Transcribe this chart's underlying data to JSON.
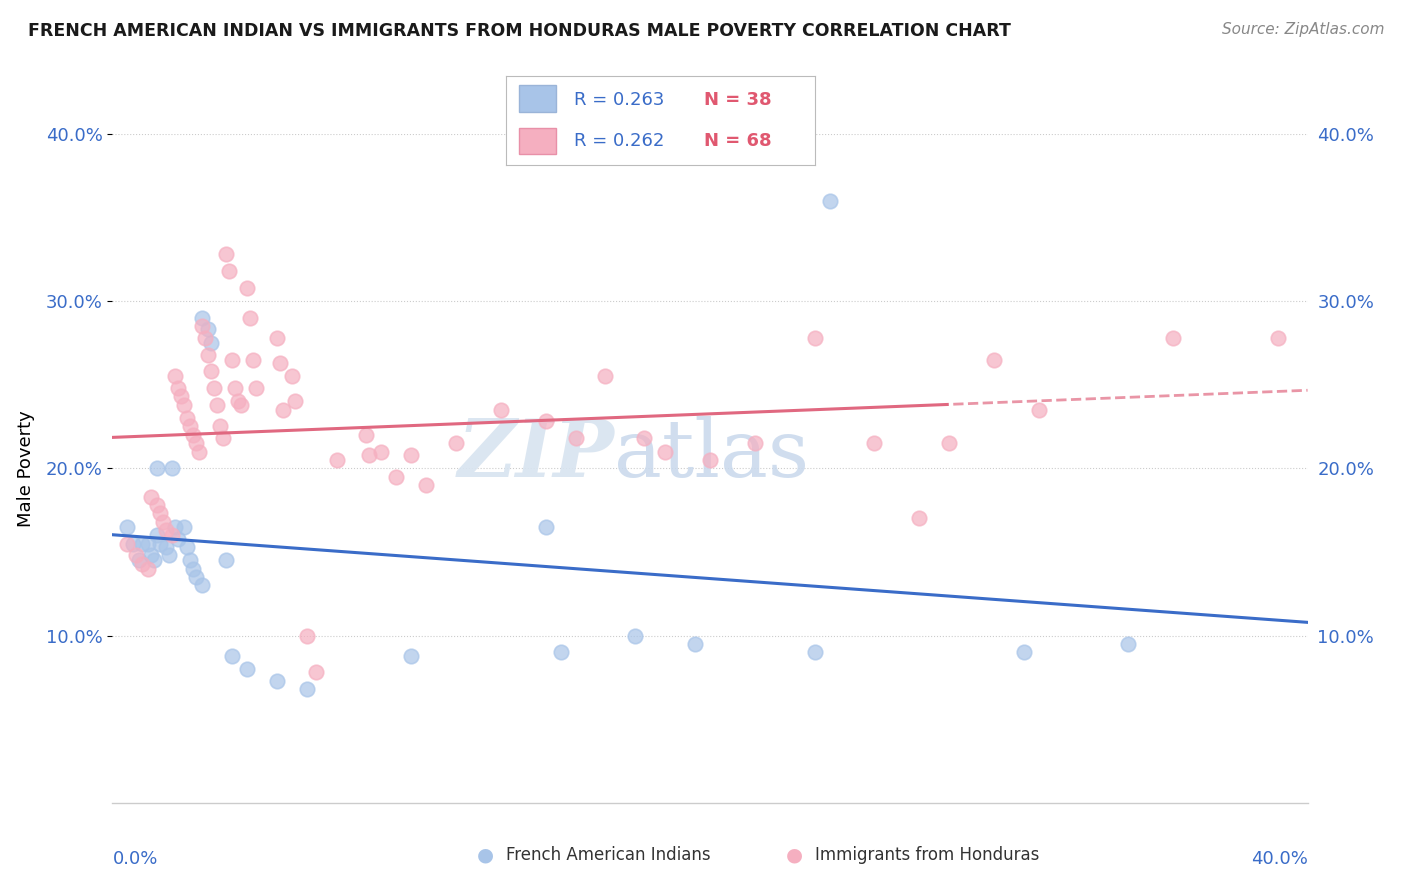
{
  "title": "FRENCH AMERICAN INDIAN VS IMMIGRANTS FROM HONDURAS MALE POVERTY CORRELATION CHART",
  "source": "Source: ZipAtlas.com",
  "ylabel": "Male Poverty",
  "xmin": 0.0,
  "xmax": 0.4,
  "ymin": 0.0,
  "ymax": 0.4,
  "yticks": [
    0.1,
    0.2,
    0.3,
    0.4
  ],
  "ytick_labels": [
    "10.0%",
    "20.0%",
    "30.0%",
    "40.0%"
  ],
  "legend_blue_r": "R = 0.263",
  "legend_blue_n": "N = 38",
  "legend_pink_r": "R = 0.262",
  "legend_pink_n": "N = 68",
  "blue_label": "French American Indians",
  "pink_label": "Immigrants from Honduras",
  "blue_color": "#a8c4e8",
  "pink_color": "#f5afc0",
  "blue_line_color": "#3a6cc8",
  "pink_line_color": "#e06880",
  "watermark_zip": "ZIP",
  "watermark_atlas": "atlas",
  "blue_points": [
    [
      0.005,
      0.165
    ],
    [
      0.007,
      0.155
    ],
    [
      0.009,
      0.145
    ],
    [
      0.01,
      0.155
    ],
    [
      0.012,
      0.155
    ],
    [
      0.013,
      0.148
    ],
    [
      0.014,
      0.145
    ],
    [
      0.015,
      0.2
    ],
    [
      0.015,
      0.16
    ],
    [
      0.016,
      0.155
    ],
    [
      0.018,
      0.153
    ],
    [
      0.019,
      0.148
    ],
    [
      0.02,
      0.2
    ],
    [
      0.021,
      0.165
    ],
    [
      0.022,
      0.158
    ],
    [
      0.024,
      0.165
    ],
    [
      0.025,
      0.153
    ],
    [
      0.026,
      0.145
    ],
    [
      0.027,
      0.14
    ],
    [
      0.028,
      0.135
    ],
    [
      0.03,
      0.13
    ],
    [
      0.03,
      0.29
    ],
    [
      0.032,
      0.283
    ],
    [
      0.033,
      0.275
    ],
    [
      0.038,
      0.145
    ],
    [
      0.04,
      0.088
    ],
    [
      0.045,
      0.08
    ],
    [
      0.055,
      0.073
    ],
    [
      0.065,
      0.068
    ],
    [
      0.1,
      0.088
    ],
    [
      0.145,
      0.165
    ],
    [
      0.15,
      0.09
    ],
    [
      0.175,
      0.1
    ],
    [
      0.195,
      0.095
    ],
    [
      0.235,
      0.09
    ],
    [
      0.24,
      0.36
    ],
    [
      0.305,
      0.09
    ],
    [
      0.34,
      0.095
    ]
  ],
  "pink_points": [
    [
      0.005,
      0.155
    ],
    [
      0.008,
      0.148
    ],
    [
      0.01,
      0.143
    ],
    [
      0.012,
      0.14
    ],
    [
      0.013,
      0.183
    ],
    [
      0.015,
      0.178
    ],
    [
      0.016,
      0.173
    ],
    [
      0.017,
      0.168
    ],
    [
      0.018,
      0.163
    ],
    [
      0.02,
      0.16
    ],
    [
      0.021,
      0.255
    ],
    [
      0.022,
      0.248
    ],
    [
      0.023,
      0.243
    ],
    [
      0.024,
      0.238
    ],
    [
      0.025,
      0.23
    ],
    [
      0.026,
      0.225
    ],
    [
      0.027,
      0.22
    ],
    [
      0.028,
      0.215
    ],
    [
      0.029,
      0.21
    ],
    [
      0.03,
      0.285
    ],
    [
      0.031,
      0.278
    ],
    [
      0.032,
      0.268
    ],
    [
      0.033,
      0.258
    ],
    [
      0.034,
      0.248
    ],
    [
      0.035,
      0.238
    ],
    [
      0.036,
      0.225
    ],
    [
      0.037,
      0.218
    ],
    [
      0.038,
      0.328
    ],
    [
      0.039,
      0.318
    ],
    [
      0.04,
      0.265
    ],
    [
      0.041,
      0.248
    ],
    [
      0.042,
      0.24
    ],
    [
      0.043,
      0.238
    ],
    [
      0.045,
      0.308
    ],
    [
      0.046,
      0.29
    ],
    [
      0.047,
      0.265
    ],
    [
      0.048,
      0.248
    ],
    [
      0.055,
      0.278
    ],
    [
      0.056,
      0.263
    ],
    [
      0.057,
      0.235
    ],
    [
      0.06,
      0.255
    ],
    [
      0.061,
      0.24
    ],
    [
      0.065,
      0.1
    ],
    [
      0.068,
      0.078
    ],
    [
      0.075,
      0.205
    ],
    [
      0.085,
      0.22
    ],
    [
      0.086,
      0.208
    ],
    [
      0.09,
      0.21
    ],
    [
      0.095,
      0.195
    ],
    [
      0.1,
      0.208
    ],
    [
      0.105,
      0.19
    ],
    [
      0.115,
      0.215
    ],
    [
      0.13,
      0.235
    ],
    [
      0.145,
      0.228
    ],
    [
      0.155,
      0.218
    ],
    [
      0.165,
      0.255
    ],
    [
      0.178,
      0.218
    ],
    [
      0.185,
      0.21
    ],
    [
      0.2,
      0.205
    ],
    [
      0.215,
      0.215
    ],
    [
      0.235,
      0.278
    ],
    [
      0.255,
      0.215
    ],
    [
      0.27,
      0.17
    ],
    [
      0.28,
      0.215
    ],
    [
      0.295,
      0.265
    ],
    [
      0.31,
      0.235
    ],
    [
      0.355,
      0.278
    ],
    [
      0.39,
      0.278
    ]
  ]
}
